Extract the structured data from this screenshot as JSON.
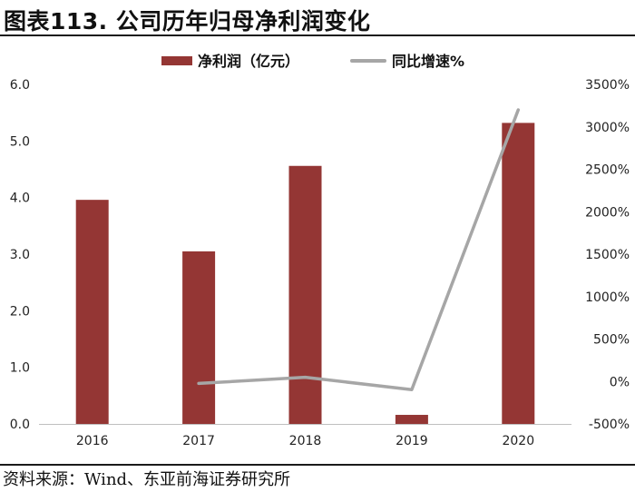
{
  "header": {
    "title": "图表113. 公司历年归母净利润变化"
  },
  "footer": {
    "source": "资料来源：Wind、东亚前海证券研究所"
  },
  "chart_data": {
    "type": "bar",
    "categories": [
      "2016",
      "2017",
      "2018",
      "2019",
      "2020"
    ],
    "series": [
      {
        "name": "净利润（亿元）",
        "kind": "bar",
        "axis": "left",
        "color": "#943634",
        "values": [
          3.96,
          3.05,
          4.56,
          0.16,
          5.32
        ]
      },
      {
        "name": "同比增速%",
        "kind": "line",
        "axis": "right",
        "color": "#a6a6a6",
        "values": [
          null,
          -23,
          49,
          -96,
          3200
        ]
      }
    ],
    "y_left": {
      "min": 0,
      "max": 6,
      "ticks": [
        "0.0",
        "1.0",
        "2.0",
        "3.0",
        "4.0",
        "5.0",
        "6.0"
      ]
    },
    "y_right": {
      "min": -500,
      "max": 3500,
      "ticks": [
        "-500%",
        "0%",
        "500%",
        "1000%",
        "1500%",
        "2000%",
        "2500%",
        "3000%",
        "3500%"
      ]
    },
    "legend_position": "top-center",
    "grid": false
  }
}
